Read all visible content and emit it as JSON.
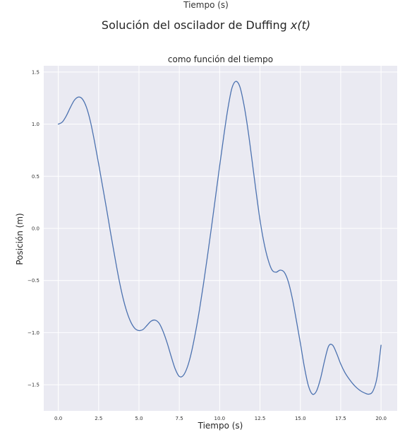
{
  "chart_data": {
    "type": "line",
    "top_xlabel": "Tiempo (s)",
    "title_prefix": "Solución del oscilador de Duffing ",
    "title_math": "x(t)",
    "subtitle": "como función del tiempo",
    "xlabel": "Tiempo (s)",
    "ylabel": "Posición (m)",
    "xlim": [
      -0.9,
      21.0
    ],
    "ylim": [
      -1.75,
      1.56
    ],
    "xticks": [
      0.0,
      2.5,
      5.0,
      7.5,
      10.0,
      12.5,
      15.0,
      17.5,
      20.0
    ],
    "xtick_labels": [
      "0.0",
      "2.5",
      "5.0",
      "7.5",
      "10.0",
      "12.5",
      "15.0",
      "17.5",
      "20.0"
    ],
    "yticks": [
      -1.5,
      -1.0,
      -0.5,
      0.0,
      0.5,
      1.0,
      1.5
    ],
    "ytick_labels": [
      "−1.5",
      "−1.0",
      "−0.5",
      "0.0",
      "0.5",
      "1.0",
      "1.5"
    ],
    "grid": true,
    "line_color": "#4c72b0",
    "series": [
      {
        "x": [
          0.0,
          0.25,
          0.5,
          0.75,
          1.0,
          1.25,
          1.5,
          1.75,
          2.0,
          2.25,
          2.5,
          2.75,
          3.0,
          3.25,
          3.5,
          3.75,
          4.0,
          4.25,
          4.5,
          4.75,
          5.0,
          5.25,
          5.5,
          5.75,
          6.0,
          6.25,
          6.5,
          6.75,
          7.0,
          7.25,
          7.5,
          7.75,
          8.0,
          8.25,
          8.5,
          8.75,
          9.0,
          9.25,
          9.5,
          9.75,
          10.0,
          10.25,
          10.5,
          10.75,
          11.0,
          11.25,
          11.5,
          11.75,
          12.0,
          12.25,
          12.5,
          12.75,
          13.0,
          13.25,
          13.5,
          13.75,
          14.0,
          14.25,
          14.5,
          14.75,
          15.0,
          15.25,
          15.5,
          15.75,
          16.0,
          16.25,
          16.5,
          16.75,
          17.0,
          17.25,
          17.5,
          17.75,
          18.0,
          18.25,
          18.5,
          18.75,
          19.0,
          19.25,
          19.5,
          19.75,
          20.0
        ],
        "y": [
          1.0,
          1.02,
          1.08,
          1.16,
          1.23,
          1.26,
          1.24,
          1.16,
          1.02,
          0.83,
          0.62,
          0.4,
          0.18,
          -0.05,
          -0.27,
          -0.48,
          -0.66,
          -0.8,
          -0.9,
          -0.96,
          -0.98,
          -0.97,
          -0.93,
          -0.89,
          -0.88,
          -0.91,
          -0.99,
          -1.1,
          -1.23,
          -1.35,
          -1.42,
          -1.41,
          -1.33,
          -1.19,
          -1.0,
          -0.78,
          -0.53,
          -0.26,
          0.02,
          0.31,
          0.6,
          0.88,
          1.14,
          1.34,
          1.41,
          1.36,
          1.19,
          0.95,
          0.66,
          0.36,
          0.08,
          -0.14,
          -0.3,
          -0.4,
          -0.42,
          -0.4,
          -0.42,
          -0.51,
          -0.67,
          -0.88,
          -1.1,
          -1.33,
          -1.51,
          -1.59,
          -1.56,
          -1.44,
          -1.27,
          -1.13,
          -1.12,
          -1.2,
          -1.3,
          -1.38,
          -1.44,
          -1.49,
          -1.53,
          -1.56,
          -1.58,
          -1.59,
          -1.56,
          -1.43,
          -1.12
        ]
      }
    ]
  }
}
